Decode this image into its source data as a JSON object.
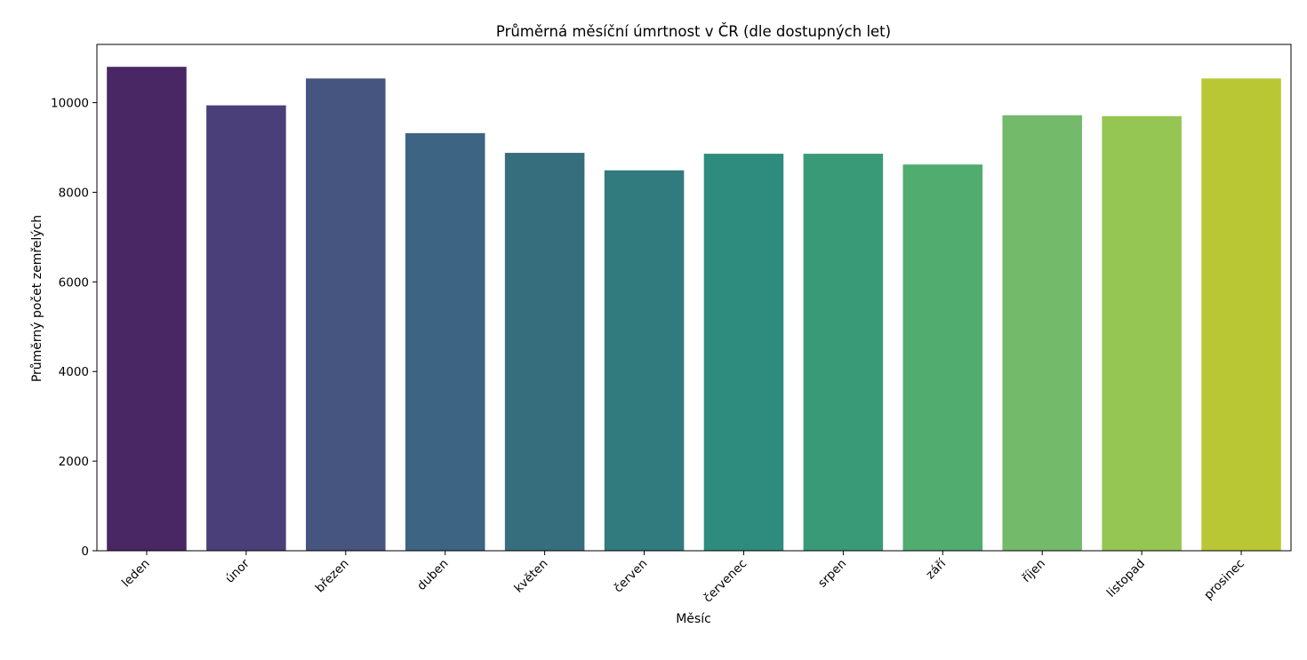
{
  "chart_data": {
    "type": "bar",
    "title": "Průměrná měsíční úmrtnost v ČR (dle dostupných let)",
    "xlabel": "Měsíc",
    "ylabel": "Průměrný počet zemřelých",
    "categories": [
      "leden",
      "únor",
      "březen",
      "duben",
      "květen",
      "červen",
      "červenec",
      "srpen",
      "září",
      "říjen",
      "listopad",
      "prosinec"
    ],
    "values": [
      10800,
      9940,
      10540,
      9320,
      8880,
      8490,
      8860,
      8860,
      8620,
      9720,
      9700,
      10540
    ],
    "ylim": [
      0,
      11300
    ],
    "yticks": [
      0,
      2000,
      4000,
      6000,
      8000,
      10000
    ],
    "grid": false,
    "legend": "none",
    "colors": [
      "#482764",
      "#4a3f79",
      "#46557f",
      "#3d6482",
      "#366e7e",
      "#317a7e",
      "#2e8c7e",
      "#399a78",
      "#50ac6f",
      "#73ba6a",
      "#95c553",
      "#bac735"
    ]
  }
}
